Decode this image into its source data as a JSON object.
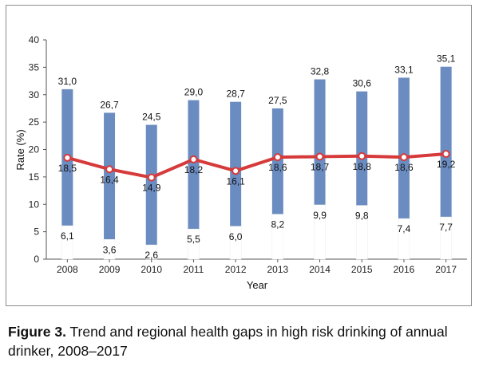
{
  "chart_data": {
    "type": "bar",
    "subtype": "floating-range-with-line",
    "categories": [
      "2008",
      "2009",
      "2010",
      "2011",
      "2012",
      "2013",
      "2014",
      "2015",
      "2016",
      "2017"
    ],
    "series": [
      {
        "role": "range-max",
        "values": [
          31.0,
          26.7,
          24.5,
          29.0,
          28.7,
          27.5,
          32.8,
          30.6,
          33.1,
          35.1
        ]
      },
      {
        "role": "range-min",
        "values": [
          6.1,
          3.6,
          2.6,
          5.5,
          6.0,
          8.2,
          9.9,
          9.8,
          7.4,
          7.7
        ]
      },
      {
        "role": "line",
        "values": [
          18.5,
          16.4,
          14.9,
          18.2,
          16.1,
          18.6,
          18.7,
          18.8,
          18.6,
          19.2
        ]
      }
    ],
    "max_labels": [
      "31,0",
      "26,7",
      "24,5",
      "29,0",
      "28,7",
      "27,5",
      "32,8",
      "30,6",
      "33,1",
      "35,1"
    ],
    "min_labels": [
      "6,1",
      "3,6",
      "2,6",
      "5,5",
      "6,0",
      "8,2",
      "9,9",
      "9,8",
      "7,4",
      "7,7"
    ],
    "line_labels": [
      "18,5",
      "16,4",
      "14,9",
      "18,2",
      "16,1",
      "18,6",
      "18,7",
      "18,8",
      "18,6",
      "19,2"
    ],
    "yticks": [
      "0",
      "5",
      "10",
      "15",
      "20",
      "25",
      "30",
      "35",
      "40"
    ],
    "ylim": [
      0,
      40
    ],
    "xlabel": "Year",
    "ylabel": "Rate (%)",
    "grid": false,
    "legend": "none",
    "colors": {
      "bar": "#6b8cc0",
      "line": "#d63a3a",
      "marker_fill": "#ffffff",
      "marker_stroke": "#d63a3a"
    }
  },
  "caption": {
    "figure_label": "Figure 3.",
    "text": " Trend and regional health gaps in high risk drinking of annual drinker, 2008–2017"
  }
}
